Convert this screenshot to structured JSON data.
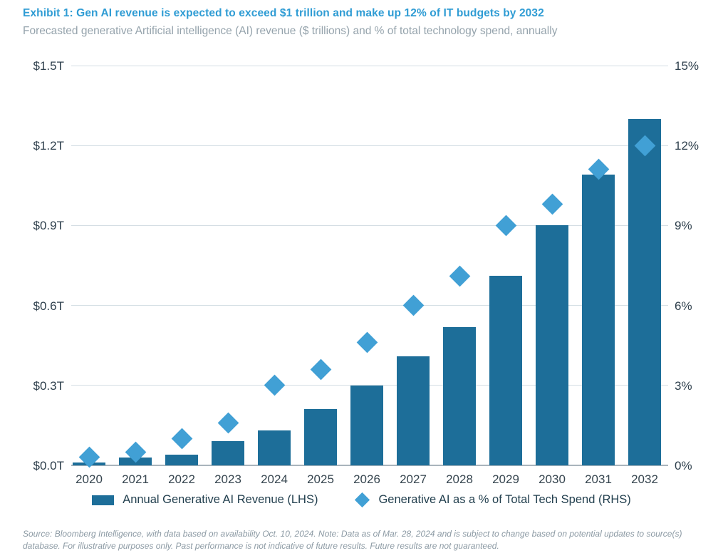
{
  "header": {
    "title": "Exhibit 1: Gen AI revenue is expected to exceed $1 trillion and make up 12% of IT budgets by 2032",
    "subtitle": "Forecasted generative Artificial intelligence (AI) revenue ($ trillions) and % of total technology spend, annually"
  },
  "footer": {
    "source": "Source: Bloomberg Intelligence, with data based on availability Oct. 10, 2024. Note: Data as of Mar. 28, 2024 and is subject to change based on potential updates to source(s) database. For illustrative purposes only. Past performance is not indicative of future results. Future results are not guaranteed."
  },
  "colors": {
    "title_blue": "#2f9cd4",
    "bar": "#1d6e99",
    "diamond": "#41a0d5",
    "gridline": "#d4dee4",
    "baseline": "#a9b4bc",
    "axis_text": "#2e3f4c",
    "subtitle_gray": "#95a3ac",
    "source_gray": "#8c9aa4"
  },
  "chart_data": {
    "type": "bar",
    "title": "Exhibit 1: Gen AI revenue is expected to exceed $1 trillion and make up 12% of IT budgets by 2032",
    "subtitle": "Forecasted generative Artificial intelligence (AI) revenue ($ trillions) and % of total technology spend, annually",
    "categories": [
      "2020",
      "2021",
      "2022",
      "2023",
      "2024",
      "2025",
      "2026",
      "2027",
      "2028",
      "2029",
      "2030",
      "2031",
      "2032"
    ],
    "series": [
      {
        "name": "Annual Generative AI Revenue (LHS)",
        "type": "bar",
        "axis": "left",
        "unit": "$ trillions",
        "values": [
          0.01,
          0.03,
          0.04,
          0.09,
          0.13,
          0.21,
          0.3,
          0.41,
          0.52,
          0.71,
          0.9,
          1.09,
          1.3
        ]
      },
      {
        "name": "Generative AI as a % of Total Tech Spend (RHS)",
        "type": "scatter",
        "marker": "diamond",
        "axis": "right",
        "unit": "%",
        "values": [
          0.3,
          0.5,
          1.0,
          1.6,
          3.0,
          3.6,
          4.6,
          6.0,
          7.1,
          9.0,
          9.8,
          11.1,
          12.0
        ]
      }
    ],
    "left_axis": {
      "range": [
        0,
        1.5
      ],
      "tick_labels": [
        "$0.0T",
        "$0.3T",
        "$0.6T",
        "$0.9T",
        "$1.2T",
        "$1.5T"
      ]
    },
    "right_axis": {
      "range": [
        0,
        15
      ],
      "tick_labels": [
        "0%",
        "3%",
        "6%",
        "9%",
        "12%",
        "15%"
      ]
    },
    "grid": true,
    "legend_position": "bottom"
  }
}
